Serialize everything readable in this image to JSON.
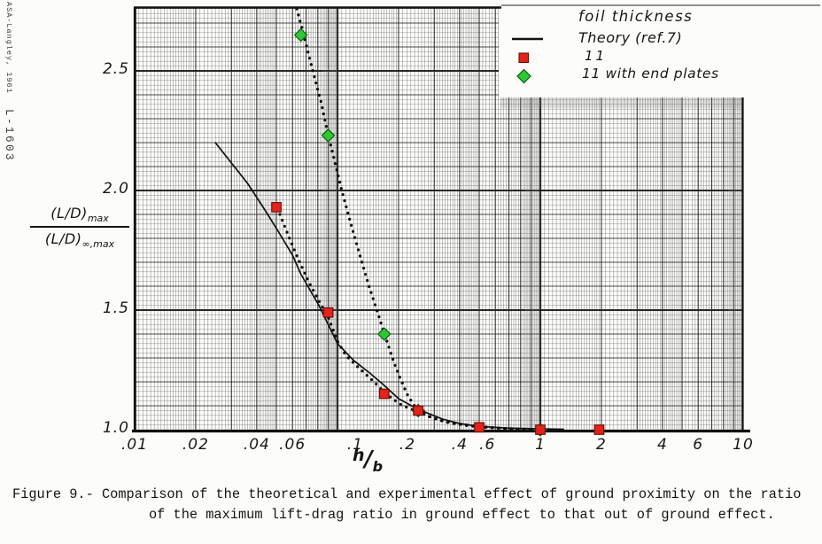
{
  "page": {
    "background": "#fcfcfa",
    "margin_note_left": "ASA-Langley, 1961",
    "margin_note_id": "L-1603"
  },
  "legend": {
    "title": "foil thickness",
    "items": [
      {
        "symbol": "solid-line",
        "label": "Theory (ref.7)"
      },
      {
        "symbol": "red-square",
        "label": "11"
      },
      {
        "symbol": "green-diamond",
        "label": "11 with end plates"
      }
    ]
  },
  "axes": {
    "y_numerator": "(L/D)",
    "y_numerator_sub": "max",
    "y_denominator": "(L/D)",
    "y_denominator_sub": "∞,max",
    "x_h": "h",
    "x_slash": "/",
    "x_b": "b"
  },
  "caption": {
    "line1": "Figure 9.- Comparison of the theoretical and experimental effect of ground proximity on the ratio",
    "line2": "of the maximum lift-drag ratio in ground effect to that out of ground effect."
  },
  "chart_data": {
    "type": "scatter",
    "title": "",
    "xlabel": "h/b",
    "ylabel": "(L/D)max / (L/D)∞,max",
    "x_scale": "log",
    "x_range": [
      0.01,
      10
    ],
    "y_scale": "linear",
    "y_range": [
      1.0,
      2.77
    ],
    "grid": "dense semi-log graph paper, legend on white patch top-right",
    "x_ticks": [
      {
        "v": 0.01,
        "label": ".01"
      },
      {
        "v": 0.02,
        "label": ".02"
      },
      {
        "v": 0.04,
        "label": ".04"
      },
      {
        "v": 0.06,
        "label": ".06"
      },
      {
        "v": 0.1,
        "label": ".1",
        "dx": 20
      },
      {
        "v": 0.2,
        "label": ".2",
        "dx": 10
      },
      {
        "v": 0.4,
        "label": ".4"
      },
      {
        "v": 0.6,
        "label": ".6",
        "dx": -9
      },
      {
        "v": 1,
        "label": "1"
      },
      {
        "v": 2,
        "label": "2"
      },
      {
        "v": 4,
        "label": "4"
      },
      {
        "v": 6,
        "label": "6"
      },
      {
        "v": 10,
        "label": "10"
      }
    ],
    "y_ticks": [
      {
        "v": 1.0,
        "label": "1.0"
      },
      {
        "v": 1.5,
        "label": "1.5"
      },
      {
        "v": 2.0,
        "label": "2.0"
      },
      {
        "v": 2.5,
        "label": "2.5"
      }
    ],
    "colors": {
      "red": "#e2231a",
      "red_edge": "#6d0b06",
      "green": "#2fc832",
      "green_edge": "#0b5c12",
      "ink": "#181818"
    },
    "series": [
      {
        "name": "Theory (ref.7)",
        "type": "line",
        "style": "solid",
        "points": [
          [
            0.025,
            2.2
          ],
          [
            0.031,
            2.1
          ],
          [
            0.036,
            2.03
          ],
          [
            0.043,
            1.93
          ],
          [
            0.051,
            1.83
          ],
          [
            0.06,
            1.73
          ],
          [
            0.066,
            1.65
          ],
          [
            0.081,
            1.52
          ],
          [
            0.1,
            1.36
          ],
          [
            0.12,
            1.29
          ],
          [
            0.145,
            1.235
          ],
          [
            0.17,
            1.185
          ],
          [
            0.2,
            1.13
          ],
          [
            0.25,
            1.085
          ],
          [
            0.33,
            1.044
          ],
          [
            0.4,
            1.026
          ],
          [
            0.49,
            1.015
          ],
          [
            0.67,
            1.007
          ],
          [
            0.9,
            1.004
          ],
          [
            1.3,
            1.002
          ]
        ]
      },
      {
        "name": "11",
        "type": "scatter",
        "marker": "red-square",
        "points": [
          [
            0.05,
            1.93
          ],
          [
            0.09,
            1.49
          ],
          [
            0.17,
            1.15
          ],
          [
            0.25,
            1.08
          ],
          [
            0.5,
            1.01
          ],
          [
            1.0,
            1.0
          ],
          [
            1.95,
            1.0
          ]
        ],
        "trend_dots": [
          [
            0.052,
            1.9
          ],
          [
            0.058,
            1.8
          ],
          [
            0.065,
            1.7
          ],
          [
            0.073,
            1.61
          ],
          [
            0.082,
            1.53
          ],
          [
            0.09,
            1.47
          ],
          [
            0.1,
            1.37
          ],
          [
            0.11,
            1.31
          ],
          [
            0.125,
            1.265
          ],
          [
            0.145,
            1.215
          ],
          [
            0.16,
            1.18
          ],
          [
            0.17,
            1.155
          ],
          [
            0.19,
            1.125
          ],
          [
            0.21,
            1.1
          ],
          [
            0.25,
            1.075
          ],
          [
            0.29,
            1.052
          ],
          [
            0.33,
            1.037
          ],
          [
            0.38,
            1.026
          ],
          [
            0.45,
            1.018
          ],
          [
            0.52,
            1.012
          ],
          [
            0.62,
            1.007
          ],
          [
            0.75,
            1.003
          ],
          [
            0.9,
            1.001
          ],
          [
            1.0,
            1.0
          ]
        ]
      },
      {
        "name": "11 with end plates",
        "type": "scatter",
        "marker": "green-diamond",
        "points": [
          [
            0.066,
            2.65
          ],
          [
            0.09,
            2.23
          ],
          [
            0.17,
            1.4
          ],
          [
            0.25,
            1.08
          ],
          [
            1.0,
            1.0
          ]
        ],
        "trend_dots": [
          [
            0.063,
            2.76
          ],
          [
            0.068,
            2.655
          ],
          [
            0.073,
            2.55
          ],
          [
            0.078,
            2.455
          ],
          [
            0.083,
            2.37
          ],
          [
            0.09,
            2.23
          ],
          [
            0.097,
            2.12
          ],
          [
            0.105,
            2.0
          ],
          [
            0.113,
            1.9
          ],
          [
            0.122,
            1.8
          ],
          [
            0.132,
            1.7
          ],
          [
            0.143,
            1.6
          ],
          [
            0.155,
            1.51
          ],
          [
            0.169,
            1.41
          ],
          [
            0.18,
            1.34
          ],
          [
            0.19,
            1.28
          ],
          [
            0.205,
            1.21
          ],
          [
            0.22,
            1.15
          ],
          [
            0.235,
            1.11
          ],
          [
            0.25,
            1.08
          ],
          [
            0.29,
            1.05
          ],
          [
            0.35,
            1.03
          ],
          [
            0.45,
            1.015
          ],
          [
            0.6,
            1.007
          ],
          [
            0.8,
            1.002
          ],
          [
            1.0,
            1.0
          ]
        ]
      }
    ]
  }
}
